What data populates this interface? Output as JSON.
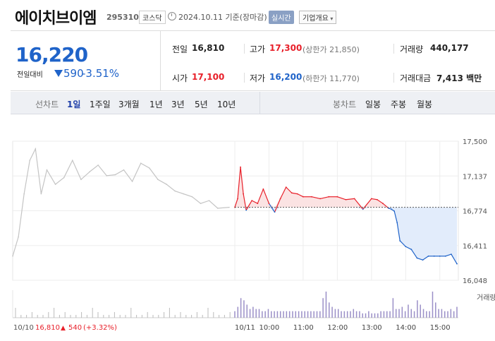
{
  "header": {
    "company_name": "에이치브이엠",
    "code": "295310",
    "market": "코스닥",
    "as_of": "2024.10.11  기준(장마감)",
    "realtime": "실시간",
    "company_info": "기업개요"
  },
  "price": {
    "current": "16,220",
    "change_label": "전일대비",
    "change_amount": "590",
    "change_rate": "-3.51%",
    "direction": "down"
  },
  "summary": {
    "prev_close_label": "전일",
    "prev_close": "16,810",
    "high_label": "고가",
    "high": "17,300",
    "upper_limit": "(상한가 21,850)",
    "volume_label": "거래량",
    "volume": "440,177",
    "open_label": "시가",
    "open": "17,100",
    "low_label": "저가",
    "low": "16,200",
    "lower_limit": "(하한가 11,770)",
    "trade_value_label": "거래대금",
    "trade_value": "7,413 백만"
  },
  "tabs": {
    "line_chart_label": "선차트",
    "periods": [
      "1일",
      "1주일",
      "3개월",
      "1년",
      "3년",
      "5년",
      "10년"
    ],
    "selected_period": "1일",
    "candle_chart_label": "봉차트",
    "candle_periods": [
      "일봉",
      "주봉",
      "월봉"
    ]
  },
  "colors": {
    "up": "#e8202a",
    "down": "#1f63c9",
    "prev_day": "#c4c4c4",
    "up_fill": "#fbe3e3",
    "down_fill": "#e2ecfb",
    "volume": "#9a8fc7"
  },
  "chart_data": {
    "type": "line",
    "y_ticks": [
      "17,500",
      "17,137",
      "16,774",
      "16,411",
      "16,048"
    ],
    "ylim": [
      16048,
      17500
    ],
    "baseline": 16810,
    "volume_label": "거래량",
    "x_ticks": [
      "10/10",
      "10/11",
      "10:00",
      "11:00",
      "12:00",
      "13:00",
      "14:00",
      "15:00"
    ],
    "prev_day_summary": {
      "date": "10/10",
      "close": "16,810",
      "change": "540",
      "rate": "(+3.32%)"
    },
    "series": [
      {
        "x": [
          "10/10 09:00",
          "10/10 09:10",
          "10/10 09:20",
          "10/10 09:30",
          "10/10 09:40",
          "10/10 09:50",
          "10/10 10:00",
          "10/10 10:15",
          "10/10 10:30",
          "10/10 10:45",
          "10/10 11:00",
          "10/10 11:15",
          "10/10 11:30",
          "10/10 11:45",
          "10/10 12:00",
          "10/10 12:15",
          "10/10 12:30",
          "10/10 12:45",
          "10/10 13:00",
          "10/10 13:15",
          "10/10 13:30",
          "10/10 13:45",
          "10/10 14:00",
          "10/10 14:15",
          "10/10 14:30",
          "10/10 14:45",
          "10/10 15:00",
          "10/10 15:20"
        ],
        "values": [
          16300,
          16500,
          16950,
          17300,
          17420,
          16950,
          17200,
          17050,
          17120,
          17300,
          17100,
          17180,
          17250,
          17140,
          17150,
          17200,
          17080,
          17270,
          17220,
          17100,
          17050,
          16980,
          16950,
          16920,
          16850,
          16880,
          16800,
          16810
        ]
      },
      {
        "x": [
          "09:00",
          "09:05",
          "09:10",
          "09:15",
          "09:20",
          "09:30",
          "09:40",
          "09:50",
          "10:00",
          "10:10",
          "10:20",
          "10:30",
          "10:40",
          "10:50",
          "11:00",
          "11:15",
          "11:30",
          "11:45",
          "12:00",
          "12:15",
          "12:30",
          "12:45",
          "13:00",
          "13:10",
          "13:20",
          "13:30",
          "13:35",
          "13:40",
          "13:45",
          "13:50",
          "14:00",
          "14:10",
          "14:20",
          "14:30",
          "14:40",
          "14:50",
          "15:00",
          "15:10",
          "15:20",
          "15:30"
        ],
        "values": [
          16810,
          16900,
          17230,
          16950,
          16780,
          16880,
          16850,
          17000,
          16850,
          16760,
          16900,
          17020,
          16960,
          16950,
          16920,
          16920,
          16900,
          16920,
          16920,
          16890,
          16900,
          16790,
          16900,
          16890,
          16850,
          16800,
          16790,
          16770,
          16650,
          16460,
          16400,
          16370,
          16280,
          16260,
          16300,
          16300,
          16300,
          16300,
          16320,
          16220
        ]
      }
    ],
    "volume": [
      3,
      5,
      9,
      8,
      6,
      4,
      5,
      4,
      4,
      3,
      3,
      4,
      3,
      3,
      3,
      3,
      3,
      3,
      3,
      3,
      3,
      3,
      3,
      3,
      3,
      3,
      3,
      3,
      3,
      9,
      12,
      7,
      5,
      4,
      4,
      3,
      3,
      3,
      3,
      4,
      3,
      3,
      2,
      2,
      3,
      2,
      2,
      2,
      3,
      3,
      3,
      3,
      9,
      4,
      4,
      5,
      3,
      6,
      4,
      3,
      8,
      6,
      4,
      3,
      3,
      12,
      7,
      4,
      4,
      3,
      3,
      4,
      3,
      5
    ]
  }
}
